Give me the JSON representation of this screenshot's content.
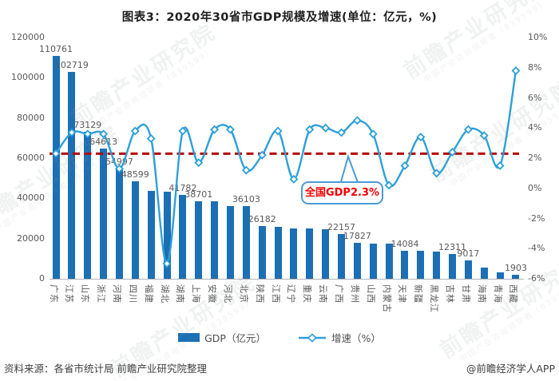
{
  "chart_data": {
    "type": "bar+line",
    "title": "图表3：2020年30省市GDP规模及增速(单位：亿元，%)",
    "categories": [
      "广东",
      "江苏",
      "山东",
      "浙江",
      "河南",
      "四川",
      "福建",
      "湖北",
      "湖南",
      "上海",
      "安徽",
      "河北",
      "北京",
      "陕西",
      "江西",
      "辽宁",
      "重庆",
      "云南",
      "广西",
      "贵州",
      "山西",
      "内蒙古",
      "天津",
      "新疆",
      "黑龙江",
      "吉林",
      "甘肃",
      "海南",
      "青海",
      "西藏"
    ],
    "series": [
      {
        "name": "GDP（亿元）",
        "type": "bar",
        "axis": "left",
        "values": [
          110761,
          102719,
          73129,
          64613,
          54997,
          48599,
          43904,
          43443,
          41782,
          38701,
          38681,
          36207,
          36103,
          26182,
          25692,
          25115,
          25003,
          24522,
          22157,
          17827,
          17652,
          17360,
          14084,
          13798,
          13699,
          12311,
          9017,
          5532,
          3006,
          1903
        ]
      },
      {
        "name": "增速（%）",
        "type": "line",
        "axis": "right",
        "values": [
          2.3,
          3.7,
          3.6,
          3.6,
          1.3,
          3.8,
          3.3,
          -5.0,
          3.8,
          1.7,
          3.9,
          3.9,
          1.2,
          2.2,
          3.8,
          0.6,
          3.9,
          4.0,
          3.7,
          4.5,
          3.6,
          0.2,
          1.5,
          3.4,
          1.0,
          2.4,
          3.9,
          3.5,
          1.5,
          7.8
        ]
      }
    ],
    "bar_value_labels": [
      "110761",
      "102719",
      "73129",
      "64613",
      "54997",
      "48599",
      null,
      null,
      "41782",
      "38701",
      null,
      null,
      "36103",
      "26182",
      null,
      null,
      null,
      null,
      "22157",
      "17827",
      null,
      null,
      "14084",
      null,
      null,
      "12311",
      "9017",
      null,
      null,
      "1903"
    ],
    "left_axis": {
      "min": 0,
      "max": 120000,
      "ticks": [
        {
          "value": 0,
          "label": "0"
        },
        {
          "value": 20000,
          "label": "20000"
        },
        {
          "value": 40000,
          "label": "40000"
        },
        {
          "value": 60000,
          "label": "60000"
        },
        {
          "value": 80000,
          "label": "80000"
        },
        {
          "value": 100000,
          "label": "100000"
        },
        {
          "value": 120000,
          "label": "120000"
        }
      ]
    },
    "right_axis": {
      "min": -6,
      "max": 10,
      "ticks": [
        {
          "value": -6,
          "label": "-6%"
        },
        {
          "value": -4,
          "label": "-4%"
        },
        {
          "value": -2,
          "label": "-2%"
        },
        {
          "value": 0,
          "label": "0%"
        },
        {
          "value": 2,
          "label": "2%"
        },
        {
          "value": 4,
          "label": "4%"
        },
        {
          "value": 6,
          "label": "6%"
        },
        {
          "value": 8,
          "label": "8%"
        },
        {
          "value": 10,
          "label": "10%"
        }
      ]
    },
    "reference_line": {
      "value": 2.3,
      "annotation": "全国GDP2.3%"
    },
    "legend_position": "bottom",
    "grid": "off"
  },
  "footer": {
    "source": "资料来源：各省市统计局 前瞻产业研究院整理",
    "brand": "@前瞻经济学人APP"
  },
  "watermark": {
    "text": "前瞻产业研究院",
    "subtext": "中国产业咨询领导者",
    "number": "839599"
  },
  "colors": {
    "bar": "#1b6fb5",
    "line": "#2da0d8",
    "reference": "#b40000",
    "ann_border": "#4a9bd5",
    "ann_text": "#f40000",
    "axis_text": "#595959",
    "title_text": "#1f1f1f"
  }
}
